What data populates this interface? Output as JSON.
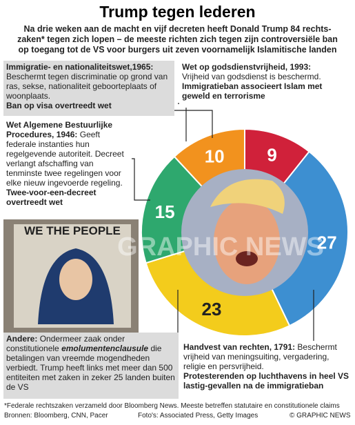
{
  "header": {
    "title": "Trump tegen lederen",
    "subtitle": [
      "Na drie weken aan de macht en vijf decreten heeft Donald Trump 84 rechts-",
      "zaken* tegen zich lopen – de meeste richten zich tegen zijn controversiële ban",
      "op toegang tot de VS voor burgers uit zeven voornamelijk Islamitische landen"
    ]
  },
  "boxes": [
    {
      "heading": "Immigratie- en nationaliteitswet,1965:",
      "body": "Beschermt tegen discriminatie op grond van ras, sekse, nationaliteit geboorteplaats of woonplaats.",
      "conclusion": "Ban op visa overtreedt wet"
    },
    {
      "heading": "Wet op godsdienstvrijheid, 1993:",
      "body": "Vrijheid van godsdienst is beschermd.",
      "conclusion": "Immigratieban associeert Islam met geweld en terrorisme"
    },
    {
      "heading": "Wet Algemene Bestuurlijke Procedures, 1946:",
      "body": "Geeft federale instanties hun regelgevende autoriteit. Decreet verlangt afschaffing van tenminste twee regelingen voor elke nieuw ingevoerde regeling.",
      "conclusion": "Twee-voor-een-decreet overtreedt wet"
    },
    {
      "heading": "Andere:",
      "body": "Ondermeer zaak onder constitutionele",
      "emphasis": "emolumentenclausule",
      "body2": "die betalingen van vreemde mogendheden verbiedt. Trump heeft links met meer dan 500 entiteiten met zaken in zeker 25 landen buiten de VS"
    },
    {
      "heading": "Handvest van rechten, 1791:",
      "body": "Beschermt vrijheid van meningsuiting, vergadering, religie en persvrijheid.",
      "conclusion": "Protesterenden op luchthavens in heel VS lastig-gevallen na de immigratieban"
    }
  ],
  "photo_text": "WE THE PEOPLE",
  "watermark": "GRAPHIC NEWS",
  "footer": {
    "note": "*Federale rechtszaken verzameld door Bloomberg News. Meeste betreffen statutaire en constitutionele claims",
    "sources": "Bronnen: Bloomberg, CNN, Pacer",
    "photos": "Foto's: Associated Press, Getty Images",
    "copyright": "© GRAPHIC NEWS"
  },
  "chart_data": {
    "type": "donut",
    "categories": [
      "Wet op godsdienstvrijheid, 1993",
      "Handvest van rechten, 1791",
      "Andere",
      "Wet Algemene Bestuurlijke Procedures, 1946",
      "Immigratie- en nationaliteitswet,1965"
    ],
    "values": [
      9,
      27,
      23,
      15,
      10
    ],
    "colors": [
      "#d0213a",
      "#3d8fd1",
      "#f3cc1c",
      "#2ea86e",
      "#f2921e"
    ]
  }
}
